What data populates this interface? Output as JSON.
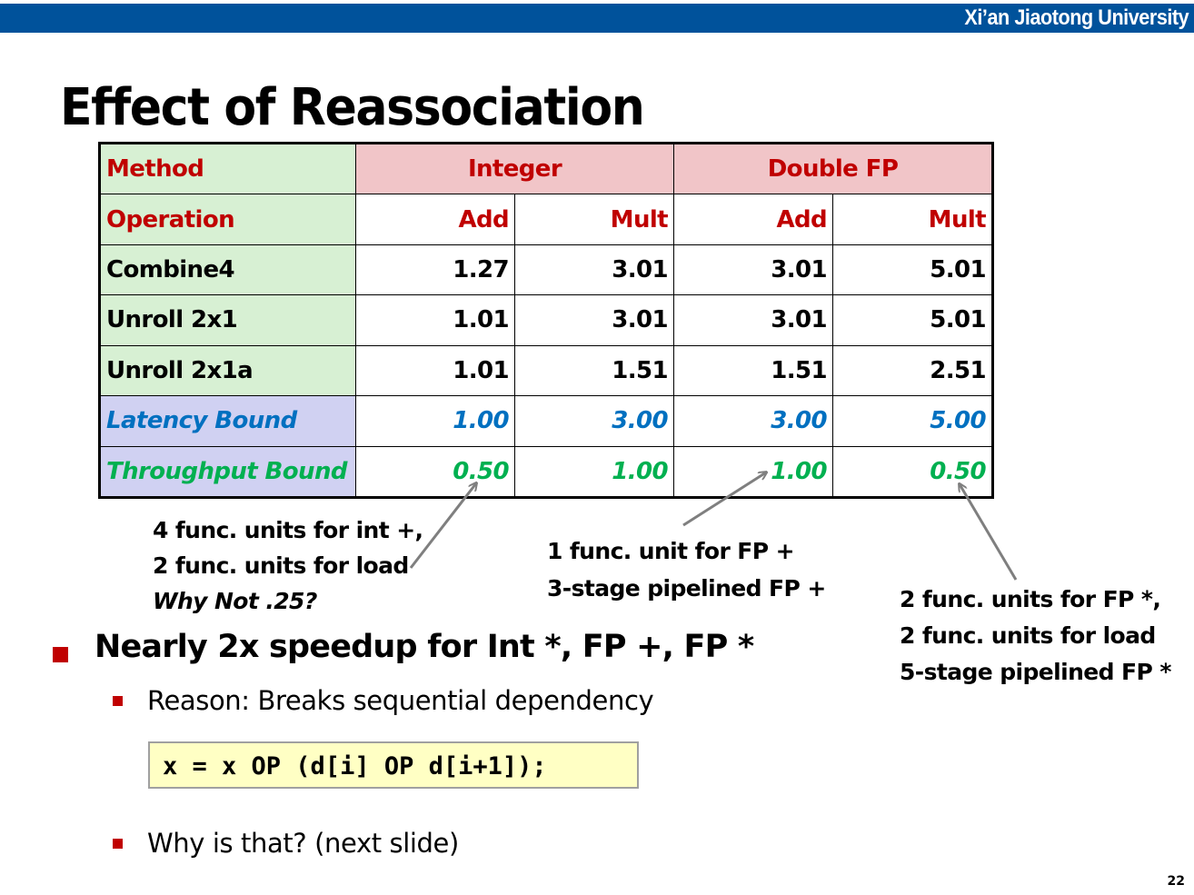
{
  "header": {
    "university": "Xi’an Jiaotong University",
    "bar_color": "#00529b"
  },
  "title": "Effect of Reassociation",
  "table": {
    "method_label": "Method",
    "group_integer": "Integer",
    "group_double": "Double FP",
    "operation_label": "Operation",
    "op_headers": [
      "Add",
      "Mult",
      "Add",
      "Mult"
    ],
    "rows": [
      {
        "label": "Combine4",
        "values": [
          "1.27",
          "3.01",
          "3.01",
          "5.01"
        ]
      },
      {
        "label": "Unroll 2x1",
        "values": [
          "1.01",
          "3.01",
          "3.01",
          "5.01"
        ]
      },
      {
        "label": "Unroll 2x1a",
        "values": [
          "1.01",
          "1.51",
          "1.51",
          "2.51"
        ]
      },
      {
        "label": "Latency Bound",
        "values": [
          "1.00",
          "3.00",
          "3.00",
          "5.00"
        ]
      },
      {
        "label": "Throughput Bound",
        "values": [
          "0.50",
          "1.00",
          "1.00",
          "0.50"
        ]
      }
    ],
    "colors": {
      "header_text": "#c00000",
      "latency": "#0070c0",
      "throughput": "#00b050",
      "label_bg": "#d7f0d3",
      "group_bg": "#f1c5c8",
      "bound_bg": "#d0d1f2"
    }
  },
  "notes": {
    "int": {
      "line1": "4 func. units for int +,",
      "line2": "2 func. units for load",
      "line3": "Why Not .25?"
    },
    "fp_add": {
      "line1": "1 func. unit for FP +",
      "line2": "3-stage pipelined FP +"
    },
    "fp_mult": {
      "line1": "2 func. units for FP *,",
      "line2": "2 func. units for load",
      "line3": "5-stage pipelined FP *"
    }
  },
  "bullets": {
    "main": "Nearly 2x speedup for Int *, FP +, FP *",
    "sub1": "Reason: Breaks sequential dependency",
    "code": "x = x OP (d[i] OP d[i+1]);",
    "sub2": "Why is that? (next slide)"
  },
  "page_number": "22"
}
